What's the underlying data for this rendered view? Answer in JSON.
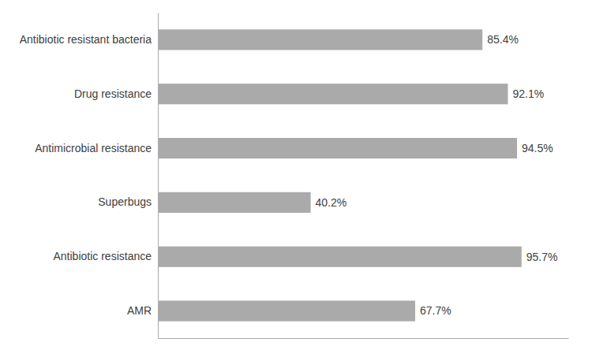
{
  "chart_data": {
    "type": "bar",
    "orientation": "horizontal",
    "categories": [
      "AMR",
      "Antibiotic resistance",
      "Superbugs",
      "Antimicrobial resistance",
      "Drug resistance",
      "Antibiotic resistant bacteria"
    ],
    "values": [
      67.7,
      95.7,
      40.2,
      94.5,
      92.1,
      85.4
    ],
    "value_labels": [
      "67.7%",
      "95.7%",
      "40.2%",
      "94.5%",
      "92.1%",
      "85.4%"
    ],
    "data_labels": true,
    "color": "#aaaaaa",
    "xlim": [
      0,
      108
    ],
    "tick_labels": "y",
    "grid": false
  }
}
